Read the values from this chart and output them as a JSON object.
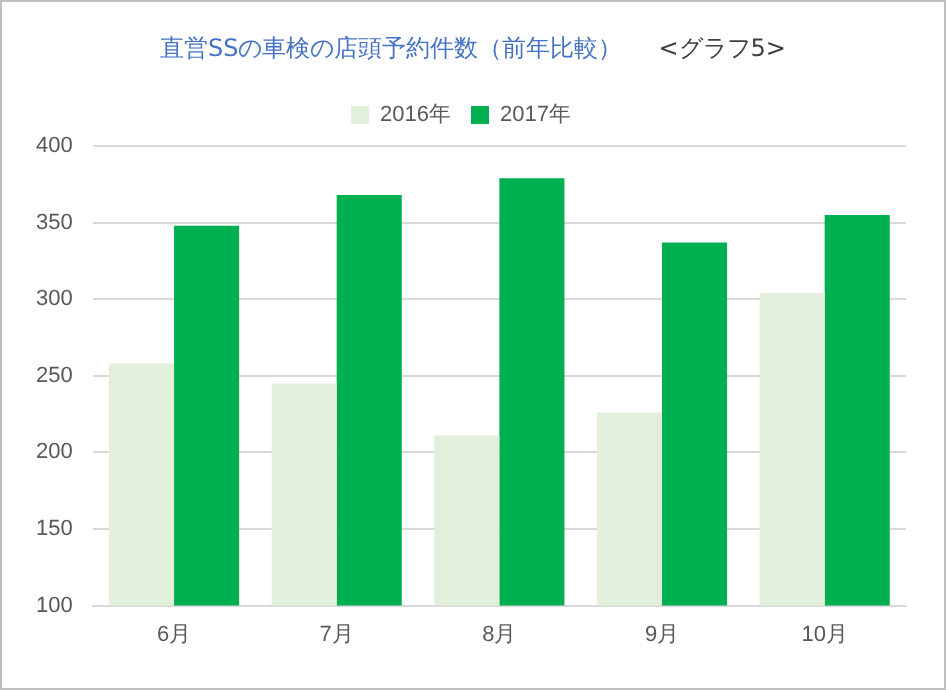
{
  "chart_data": {
    "type": "bar",
    "title": "直営SSの車検の店頭予約件数（前年比較）",
    "subtitle": "<グラフ5>",
    "categories": [
      "6月",
      "7月",
      "8月",
      "9月",
      "10月"
    ],
    "series": [
      {
        "name": "2016年",
        "color": "#e2efda",
        "values": [
          258,
          245,
          211,
          226,
          304
        ]
      },
      {
        "name": "2017年",
        "color": "#00b050",
        "values": [
          348,
          368,
          379,
          337,
          355
        ]
      }
    ],
    "ylim": [
      100,
      400
    ],
    "yticks": [
      100,
      150,
      200,
      250,
      300,
      350,
      400
    ],
    "grid": "y",
    "legend": "top"
  }
}
